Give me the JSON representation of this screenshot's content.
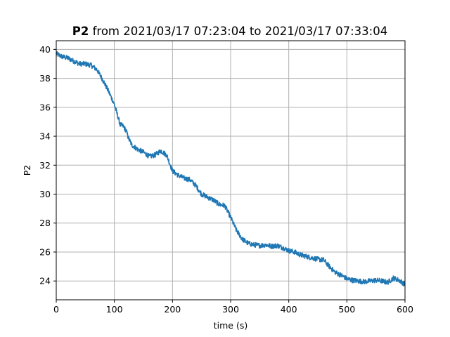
{
  "chart_data": {
    "type": "line",
    "title_bold": "P2",
    "title_rest": " from 2021/03/17 07:23:04 to 2021/03/17 07:33:04",
    "xlabel": "time (s)",
    "ylabel": "P2",
    "xlim": [
      0,
      600
    ],
    "ylim": [
      22.7,
      40.6
    ],
    "xticks": [
      0,
      100,
      200,
      300,
      400,
      500,
      600
    ],
    "yticks": [
      24,
      26,
      28,
      30,
      32,
      34,
      36,
      38,
      40
    ],
    "grid": true,
    "series": [
      {
        "color": "#1f77b4",
        "noise_band": 0.35,
        "x": [
          0,
          10,
          20,
          30,
          40,
          50,
          60,
          70,
          80,
          90,
          100,
          105,
          110,
          115,
          120,
          125,
          130,
          140,
          150,
          160,
          170,
          180,
          190,
          200,
          210,
          220,
          230,
          240,
          250,
          260,
          270,
          280,
          290,
          300,
          310,
          320,
          330,
          340,
          350,
          360,
          370,
          380,
          390,
          400,
          410,
          420,
          430,
          440,
          450,
          460,
          470,
          480,
          490,
          500,
          510,
          520,
          530,
          540,
          550,
          560,
          570,
          580,
          590,
          600
        ],
        "y": [
          39.7,
          39.5,
          39.4,
          39.2,
          39.0,
          39.0,
          38.9,
          38.6,
          37.9,
          37.1,
          36.2,
          35.5,
          34.8,
          34.7,
          34.4,
          33.8,
          33.4,
          33.1,
          32.9,
          32.6,
          32.7,
          33.0,
          32.7,
          31.6,
          31.3,
          31.1,
          31.0,
          30.6,
          30.0,
          29.8,
          29.6,
          29.3,
          29.2,
          28.4,
          27.5,
          26.9,
          26.6,
          26.5,
          26.45,
          26.5,
          26.4,
          26.45,
          26.3,
          26.1,
          26.0,
          25.8,
          25.7,
          25.6,
          25.5,
          25.45,
          25.0,
          24.6,
          24.4,
          24.15,
          24.05,
          24.0,
          23.95,
          24.0,
          24.05,
          24.0,
          23.9,
          24.2,
          24.05,
          23.75
        ]
      }
    ]
  }
}
